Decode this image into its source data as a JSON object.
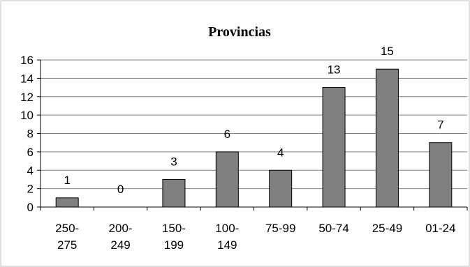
{
  "chart_data": {
    "type": "bar",
    "title": "Provincias",
    "categories": [
      [
        "250-",
        "275"
      ],
      [
        "200-",
        "249"
      ],
      [
        "150-",
        "199"
      ],
      [
        "100-",
        "149"
      ],
      [
        "75-99"
      ],
      [
        "50-74"
      ],
      [
        "25-49"
      ],
      [
        "01-24"
      ]
    ],
    "values": [
      1,
      0,
      3,
      6,
      4,
      13,
      15,
      7
    ],
    "ylim": [
      0,
      16
    ],
    "yticks": [
      0,
      2,
      4,
      6,
      8,
      10,
      12,
      14,
      16
    ],
    "grid": true,
    "legend": "none",
    "colors": {
      "bar_fill": "#808080",
      "bar_stroke": "#000000",
      "grid": "#808080",
      "axis": "#000000",
      "border": "#c0c0c0"
    }
  }
}
